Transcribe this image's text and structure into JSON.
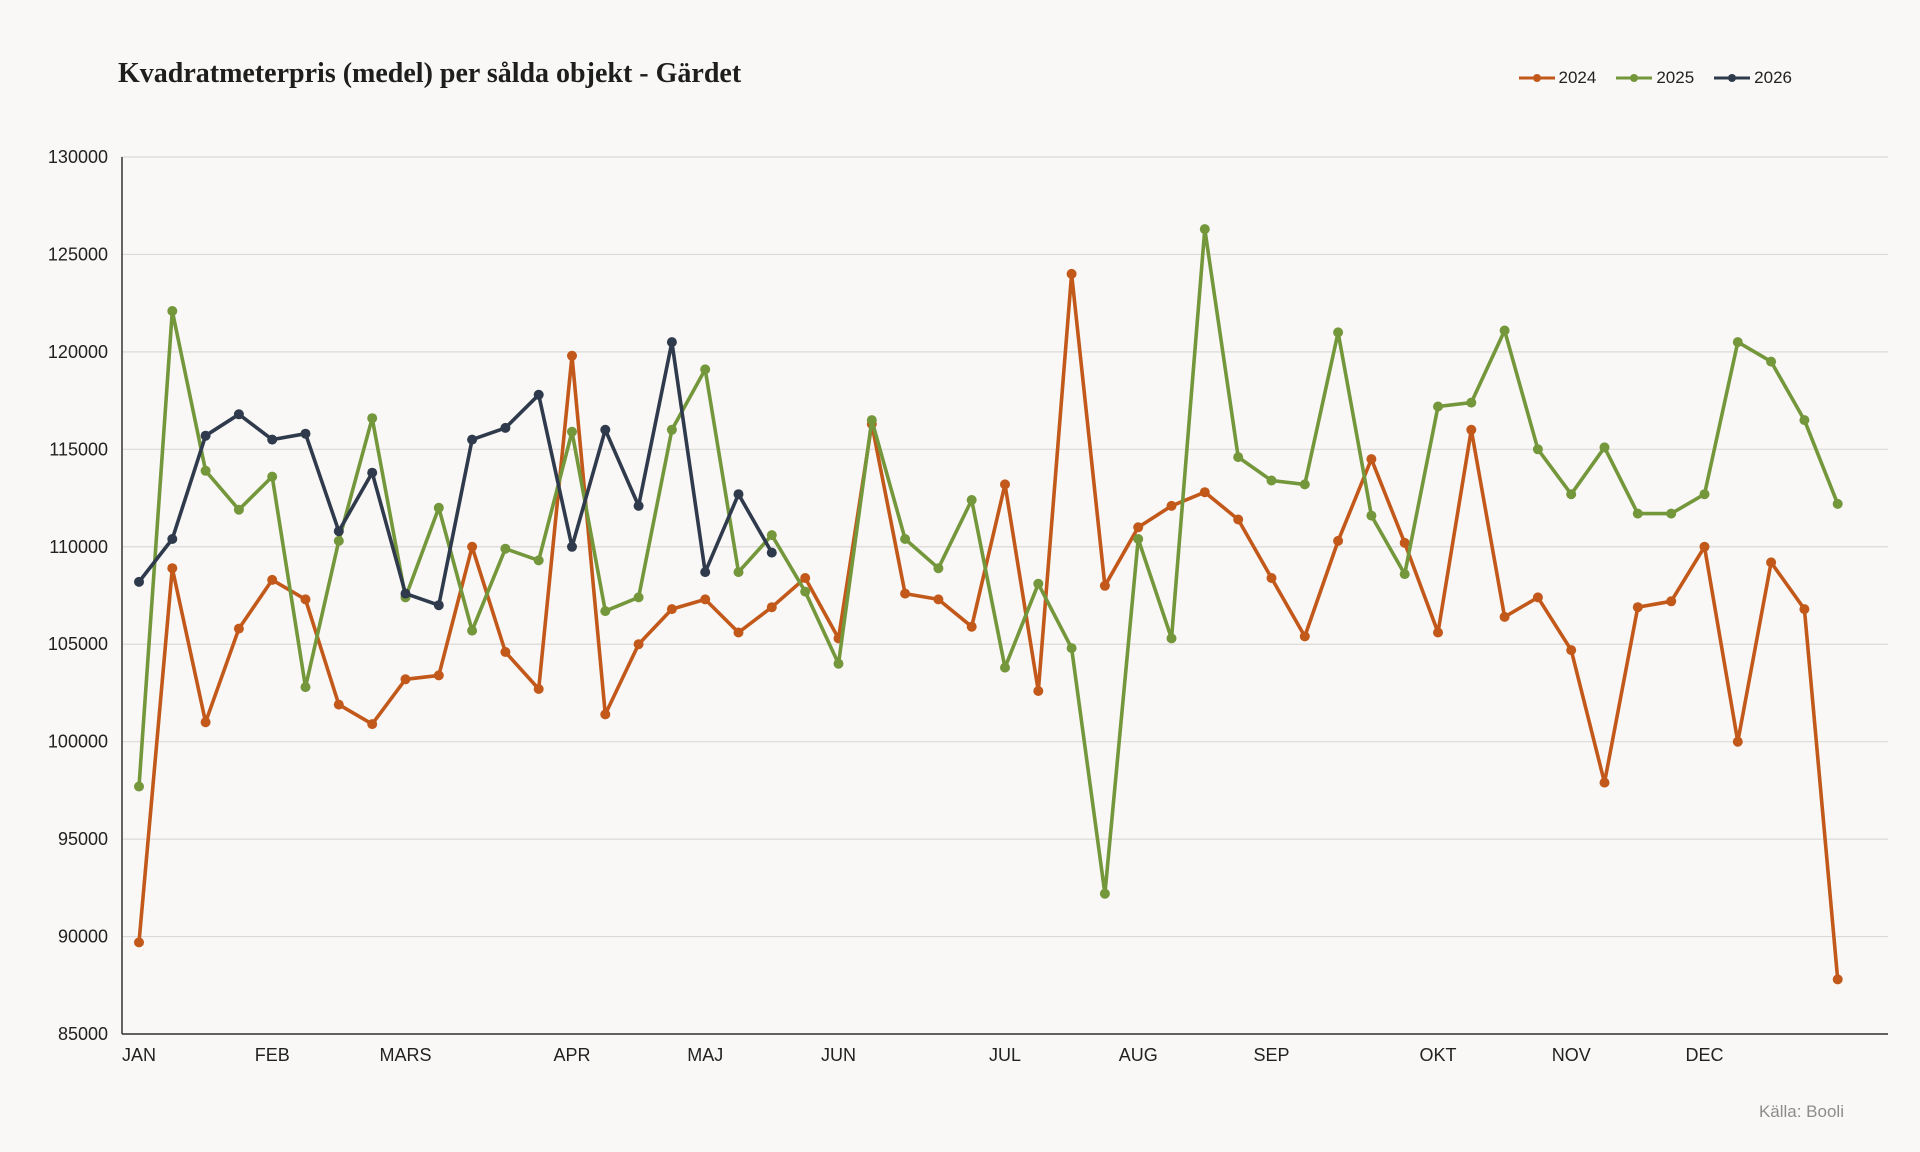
{
  "chart_data": {
    "type": "line",
    "title": "Kvadratmeterpris (medel) per sålda objekt - Gärdet",
    "source": "Källa: Booli",
    "ylim": [
      85000,
      130000
    ],
    "yticks": [
      "130000",
      "125000",
      "120000",
      "115000",
      "110000",
      "105000",
      "100000",
      "95000",
      "90000",
      "85000"
    ],
    "ytick_values": [
      130000,
      125000,
      120000,
      115000,
      110000,
      105000,
      100000,
      95000,
      90000,
      85000
    ],
    "x_count": 53,
    "xlim": [
      1,
      53
    ],
    "month_labels": [
      {
        "label": "JAN",
        "x": 1
      },
      {
        "label": "FEB",
        "x": 5
      },
      {
        "label": "MARS",
        "x": 9
      },
      {
        "label": "APR",
        "x": 14
      },
      {
        "label": "MAJ",
        "x": 18
      },
      {
        "label": "JUN",
        "x": 22
      },
      {
        "label": "JUL",
        "x": 27
      },
      {
        "label": "AUG",
        "x": 31
      },
      {
        "label": "SEP",
        "x": 35
      },
      {
        "label": "OKT",
        "x": 40
      },
      {
        "label": "NOV",
        "x": 44
      },
      {
        "label": "DEC",
        "x": 48
      }
    ],
    "grid": true,
    "legend_position": "top-right",
    "series": [
      {
        "name": "2024",
        "color": "#c2591b",
        "values": [
          89700,
          108900,
          101000,
          105800,
          108300,
          107300,
          101900,
          100900,
          103200,
          103400,
          110000,
          104600,
          102700,
          119800,
          101400,
          105000,
          106800,
          107300,
          105600,
          106900,
          108400,
          105300,
          116300,
          107600,
          107300,
          105900,
          113200,
          102600,
          124000,
          108000,
          111000,
          112100,
          112800,
          111400,
          108400,
          105400,
          110300,
          114500,
          110200,
          105600,
          116000,
          106400,
          107400,
          104700,
          97900,
          106900,
          107200,
          110000,
          100000,
          109200,
          106800,
          87800
        ]
      },
      {
        "name": "2025",
        "color": "#74973c",
        "values": [
          97700,
          122100,
          113900,
          111900,
          113600,
          102800,
          110300,
          116600,
          107400,
          112000,
          105700,
          109900,
          109300,
          115900,
          106700,
          107400,
          116000,
          119100,
          108700,
          110600,
          107700,
          104000,
          116500,
          110400,
          108900,
          112400,
          103800,
          108100,
          104800,
          92200,
          110400,
          105300,
          126300,
          114600,
          113400,
          113200,
          121000,
          111600,
          108600,
          117200,
          117400,
          121100,
          115000,
          112700,
          115100,
          111700,
          111700,
          112700,
          120500,
          119500,
          116500,
          112200
        ]
      },
      {
        "name": "2026",
        "color": "#2f3b4c",
        "values": [
          108200,
          110400,
          115700,
          116800,
          115500,
          115800,
          110800,
          113800,
          107600,
          107000,
          115500,
          116100,
          117800,
          110000,
          116000,
          112100,
          120500,
          108700,
          112700,
          109700
        ]
      }
    ]
  }
}
